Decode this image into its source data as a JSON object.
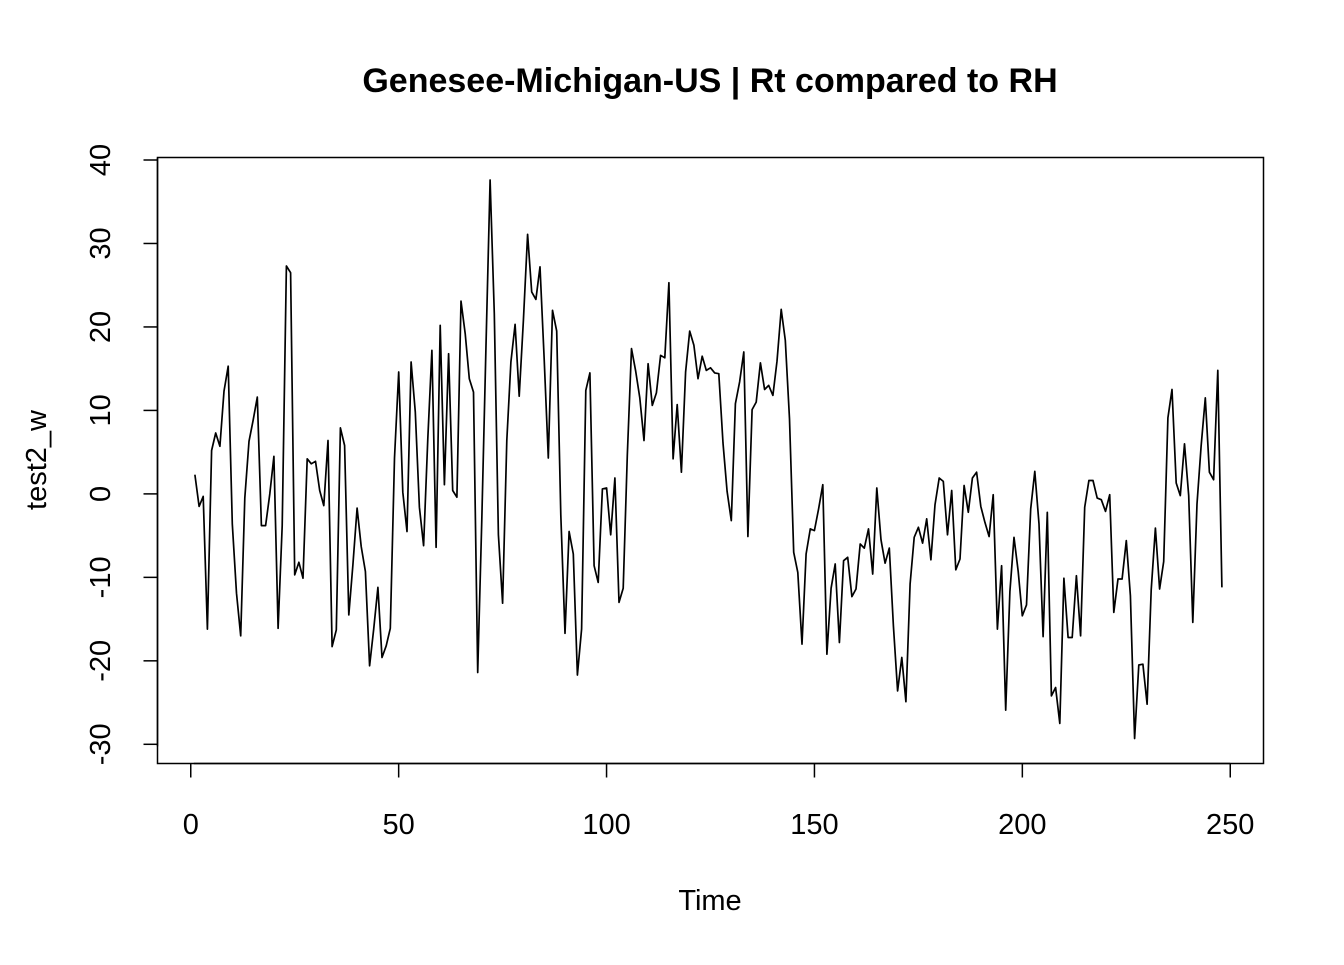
{
  "chart_data": {
    "type": "line",
    "title": "Genesee-Michigan-US | Rt compared to RH",
    "xlabel": "Time",
    "ylabel": "test2_w",
    "xlim": [
      -8,
      258
    ],
    "ylim": [
      -32.3,
      40.3
    ],
    "xticks": [
      0,
      50,
      100,
      150,
      200,
      250
    ],
    "yticks": [
      -30,
      -20,
      -10,
      0,
      10,
      20,
      30,
      40
    ],
    "xtick_labels": [
      "0",
      "50",
      "100",
      "150",
      "200",
      "250"
    ],
    "ytick_labels": [
      "-30",
      "-20",
      "-10",
      "0",
      "10",
      "20",
      "30",
      "40"
    ],
    "grid": false,
    "line_color": "#000000",
    "series": [
      {
        "x": [
          1,
          2,
          3,
          4,
          5,
          6,
          7,
          8,
          9,
          10,
          11,
          12,
          13,
          14,
          15,
          16,
          17,
          18,
          19,
          20,
          21,
          22,
          23,
          24,
          25,
          26,
          27,
          28,
          29,
          30,
          31,
          32,
          33,
          34,
          35,
          36,
          37,
          38,
          39,
          40,
          41,
          42,
          43,
          44,
          45,
          46,
          47,
          48,
          49,
          50,
          51,
          52,
          53,
          54,
          55,
          56,
          57,
          58,
          59,
          60,
          61,
          62,
          63,
          64,
          65,
          66,
          67,
          68,
          69,
          70,
          71,
          72,
          73,
          74,
          75,
          76,
          77,
          78,
          79,
          80,
          81,
          82,
          83,
          84,
          85,
          86,
          87,
          88,
          89,
          90,
          91,
          92,
          93,
          94,
          95,
          96,
          97,
          98,
          99,
          100,
          101,
          102,
          103,
          104,
          105,
          106,
          107,
          108,
          109,
          110,
          111,
          112,
          113,
          114,
          115,
          116,
          117,
          118,
          119,
          120,
          121,
          122,
          123,
          124,
          125,
          126,
          127,
          128,
          129,
          130,
          131,
          132,
          133,
          134,
          135,
          136,
          137,
          138,
          139,
          140,
          141,
          142,
          143,
          144,
          145,
          146,
          147,
          148,
          149,
          150,
          151,
          152,
          153,
          154,
          155,
          156,
          157,
          158,
          159,
          160,
          161,
          162,
          163,
          164,
          165,
          166,
          167,
          168,
          169,
          170,
          171,
          172,
          173,
          174,
          175,
          176,
          177,
          178,
          179,
          180,
          181,
          182,
          183,
          184,
          185,
          186,
          187,
          188,
          189,
          190,
          191,
          192,
          193,
          194,
          195,
          196,
          197,
          198,
          199,
          200,
          201,
          202,
          203,
          204,
          205,
          206,
          207,
          208,
          209,
          210,
          211,
          212,
          213,
          214,
          215,
          216,
          217,
          218,
          219,
          220,
          221,
          222,
          223,
          224,
          225,
          226,
          227,
          228,
          229,
          230,
          231,
          232,
          233,
          234,
          235,
          236,
          237,
          238,
          239,
          240,
          241,
          242,
          243,
          244,
          245,
          246,
          247,
          248
        ],
        "values": [
          2.3,
          -1.5,
          -0.3,
          -16.2,
          5.2,
          7.3,
          5.7,
          12.3,
          15.3,
          -3.6,
          -11.9,
          -17,
          -0.5,
          6.3,
          8.8,
          11.6,
          -3.8,
          -3.8,
          0,
          4.5,
          -16.1,
          -3.8,
          27.3,
          26.5,
          -9.7,
          -8.2,
          -10.1,
          4.2,
          3.6,
          3.9,
          0.4,
          -1.4,
          6.4,
          -18.3,
          -16.3,
          7.9,
          5.8,
          -14.5,
          -8.5,
          -1.7,
          -6.3,
          -9.3,
          -20.6,
          -16.2,
          -11.2,
          -19.6,
          -18.2,
          -16.1,
          4.3,
          14.6,
          0.2,
          -4.5,
          15.8,
          9.8,
          -1.6,
          -6.2,
          6.6,
          17.2,
          -6.4,
          20.2,
          1.1,
          16.8,
          0.4,
          -0.4,
          23.1,
          19.2,
          13.8,
          12.2,
          -21.4,
          -3.1,
          17.8,
          37.6,
          21.6,
          -4.9,
          -13.1,
          6.4,
          15.8,
          20.3,
          11.7,
          20.8,
          31.1,
          24.2,
          23.3,
          27.2,
          16.1,
          4.3,
          22,
          19.5,
          -2.5,
          -16.7,
          -4.5,
          -7.2,
          -21.7,
          -16.2,
          12.4,
          14.5,
          -8.6,
          -10.6,
          0.6,
          0.7,
          -4.9,
          1.9,
          -13,
          -11.3,
          4.6,
          17.4,
          14.7,
          11.5,
          6.4,
          15.6,
          10.6,
          12.1,
          16.6,
          16.3,
          25.3,
          4.2,
          10.7,
          2.6,
          14.6,
          19.5,
          17.8,
          13.8,
          16.5,
          14.8,
          15.1,
          14.5,
          14.4,
          6.1,
          0.3,
          -3.2,
          10.8,
          13.4,
          17,
          -5.1,
          10.1,
          11,
          15.7,
          12.5,
          13,
          11.8,
          15.9,
          22.1,
          18.4,
          9,
          -7,
          -9.4,
          -18,
          -7.2,
          -4.2,
          -4.4,
          -1.8,
          1.1,
          -19.2,
          -11.3,
          -8.4,
          -17.8,
          -8,
          -7.6,
          -12.3,
          -11.4,
          -6,
          -6.5,
          -4.2,
          -9.6,
          0.7,
          -5.5,
          -8.3,
          -6.5,
          -15.8,
          -23.6,
          -19.6,
          -24.9,
          -10.8,
          -5.2,
          -4,
          -5.9,
          -3,
          -7.9,
          -1.3,
          1.9,
          1.5,
          -4.9,
          0.4,
          -9.1,
          -7.8,
          1,
          -2.2,
          1.9,
          2.6,
          -1.5,
          -3.4,
          -5.1,
          -0.1,
          -16.2,
          -8.6,
          -25.9,
          -11.7,
          -5.2,
          -9.3,
          -14.6,
          -13.3,
          -1.8,
          2.7,
          -3.6,
          -17.1,
          -2.2,
          -24.2,
          -23.2,
          -27.5,
          -10.1,
          -17.2,
          -17.2,
          -9.8,
          -17,
          -1.6,
          1.6,
          1.6,
          -0.5,
          -0.7,
          -2.1,
          -0.1,
          -14.2,
          -10.2,
          -10.2,
          -5.6,
          -12.2,
          -29.3,
          -20.5,
          -20.4,
          -25.2,
          -11.5,
          -4.1,
          -11.4,
          -8.1,
          9.1,
          12.5,
          1.3,
          -0.2,
          6,
          -0.2,
          -15.4,
          -1.2,
          5.7,
          11.5,
          2.6,
          1.7,
          14.8,
          -11.2
        ]
      }
    ]
  }
}
